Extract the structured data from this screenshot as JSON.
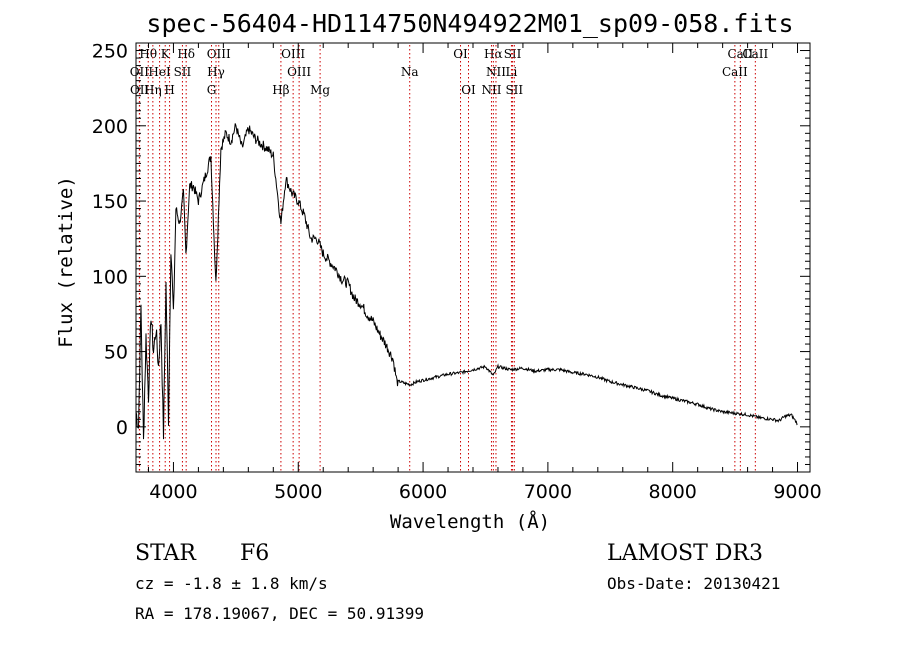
{
  "chart_data": {
    "type": "line",
    "title": "spec-56404-HD114750N494922M01_sp09-058.fits",
    "xlabel": "Wavelength (Å)",
    "ylabel": "Flux (relative)",
    "xlim": [
      3700,
      9100
    ],
    "ylim": [
      -30,
      255
    ],
    "xticks": [
      4000,
      5000,
      6000,
      7000,
      8000,
      9000
    ],
    "yticks": [
      0,
      50,
      100,
      150,
      200,
      250
    ],
    "series": [
      {
        "name": "flux",
        "x": [
          3700,
          3720,
          3740,
          3760,
          3780,
          3800,
          3820,
          3840,
          3860,
          3880,
          3900,
          3920,
          3940,
          3960,
          3980,
          4000,
          4020,
          4050,
          4080,
          4100,
          4130,
          4160,
          4200,
          4250,
          4300,
          4340,
          4380,
          4420,
          4460,
          4500,
          4550,
          4600,
          4650,
          4700,
          4750,
          4800,
          4861,
          4900,
          4950,
          5000,
          5050,
          5100,
          5150,
          5200,
          5250,
          5300,
          5350,
          5400,
          5450,
          5500,
          5550,
          5600,
          5650,
          5700,
          5730,
          5760,
          5790,
          5820,
          5850,
          5900,
          5950,
          6000,
          6100,
          6200,
          6300,
          6400,
          6500,
          6563,
          6600,
          6700,
          6800,
          6900,
          7000,
          7100,
          7200,
          7300,
          7400,
          7500,
          7600,
          7700,
          7800,
          7900,
          8000,
          8100,
          8200,
          8300,
          8400,
          8500,
          8600,
          8700,
          8800,
          8850,
          8900,
          8950,
          9000
        ],
        "y": [
          10,
          0,
          80,
          -10,
          60,
          20,
          75,
          50,
          65,
          40,
          70,
          -5,
          95,
          5,
          120,
          75,
          145,
          135,
          155,
          115,
          160,
          160,
          150,
          165,
          180,
          95,
          185,
          195,
          190,
          200,
          185,
          198,
          192,
          188,
          185,
          180,
          135,
          165,
          155,
          150,
          140,
          125,
          125,
          115,
          110,
          105,
          98,
          95,
          85,
          82,
          75,
          70,
          62,
          55,
          50,
          45,
          30,
          30,
          29,
          28,
          30,
          31,
          33,
          35,
          36,
          38,
          40,
          34,
          40,
          38,
          39,
          37,
          38,
          38,
          36,
          35,
          33,
          30,
          28,
          26,
          24,
          21,
          19,
          17,
          15,
          12,
          10,
          9,
          8,
          6,
          5,
          4,
          7,
          8,
          2
        ]
      }
    ],
    "line_markers": [
      {
        "label": "Hθ",
        "wave": 3798
      },
      {
        "label": "K",
        "wave": 3934
      },
      {
        "label": "Hδ",
        "wave": 4102
      },
      {
        "label": "OIII",
        "wave": 4363
      },
      {
        "label": "OIII",
        "wave": 4959
      },
      {
        "label": "OI",
        "wave": 6300
      },
      {
        "label": "Hα",
        "wave": 6563
      },
      {
        "label": "SII",
        "wave": 6717
      },
      {
        "label": "CaII",
        "wave": 8542
      },
      {
        "label": "OII",
        "wave": 3727
      },
      {
        "label": "HeI",
        "wave": 3889
      },
      {
        "label": "SII",
        "wave": 4072
      },
      {
        "label": "Hγ",
        "wave": 4341
      },
      {
        "label": "OIII",
        "wave": 5007
      },
      {
        "label": "Na",
        "wave": 5893
      },
      {
        "label": "NII",
        "wave": 6584
      },
      {
        "label": "Li",
        "wave": 6708
      },
      {
        "label": "CaII",
        "wave": 8498
      },
      {
        "label": "OII",
        "wave": 3729
      },
      {
        "label": "Hη",
        "wave": 3835
      },
      {
        "label": "H",
        "wave": 3969
      },
      {
        "label": "G",
        "wave": 4305
      },
      {
        "label": "Hβ",
        "wave": 4861
      },
      {
        "label": "Mg",
        "wave": 5175
      },
      {
        "label": "OI",
        "wave": 6364
      },
      {
        "label": "NII",
        "wave": 6548
      },
      {
        "label": "SII",
        "wave": 6731
      },
      {
        "label": "CaII",
        "wave": 8662
      }
    ]
  },
  "info": {
    "class": "STAR",
    "subclass": "F6",
    "survey": "LAMOST DR3",
    "cz": "cz = -1.8 ± 1.8 km/s",
    "obs_date": "Obs-Date: 20130421",
    "radec": "RA = 178.19067, DEC =  50.91399"
  },
  "colors": {
    "marker": "#cc0000",
    "line": "#000000",
    "axis": "#000000"
  }
}
